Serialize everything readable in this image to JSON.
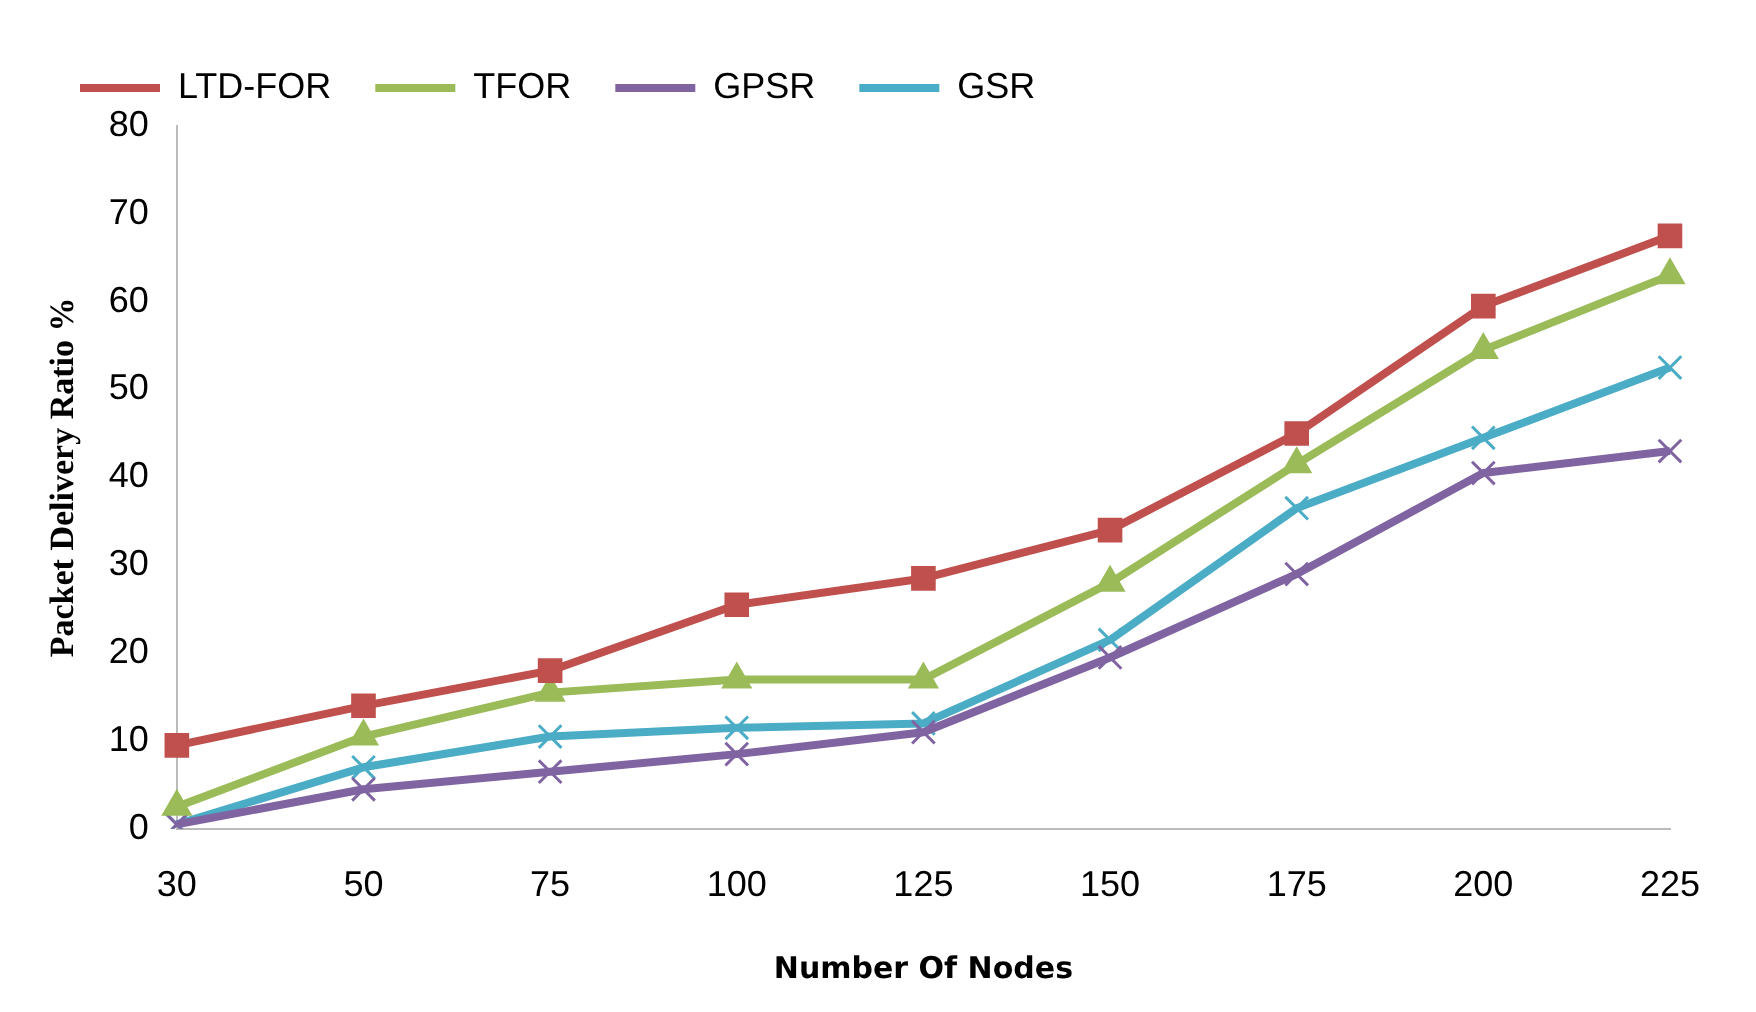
{
  "chart_data": {
    "type": "line",
    "xlabel": "Number Of Nodes",
    "ylabel": "Packet Delivery Ratio %",
    "categories": [
      "30",
      "50",
      "75",
      "100",
      "125",
      "150",
      "175",
      "200",
      "225"
    ],
    "series": [
      {
        "name": "LTD-FOR",
        "color": "#c0504d",
        "marker": "square",
        "values": [
          9.5,
          14,
          18,
          25.5,
          28.5,
          34,
          45,
          59.5,
          67.5
        ]
      },
      {
        "name": "TFOR",
        "color": "#9bbb59",
        "marker": "triangle",
        "values": [
          2.5,
          10.5,
          15.5,
          17,
          17,
          28,
          41.5,
          54.5,
          63
        ]
      },
      {
        "name": "GPSR",
        "color": "#8064a2",
        "marker": "cross",
        "values": [
          0.5,
          4.5,
          6.5,
          8.5,
          11,
          19.5,
          29,
          40.5,
          43
        ]
      },
      {
        "name": "GSR",
        "color": "#4bacc6",
        "marker": "cross",
        "values": [
          0.5,
          7,
          10.5,
          11.5,
          12,
          21.5,
          36.5,
          44.5,
          52.5
        ]
      }
    ],
    "ylim": [
      0,
      80
    ],
    "yticks": [
      0,
      10,
      20,
      30,
      40,
      50,
      60,
      70,
      80
    ],
    "grid": false,
    "legend": "top",
    "line_style": "solid"
  }
}
